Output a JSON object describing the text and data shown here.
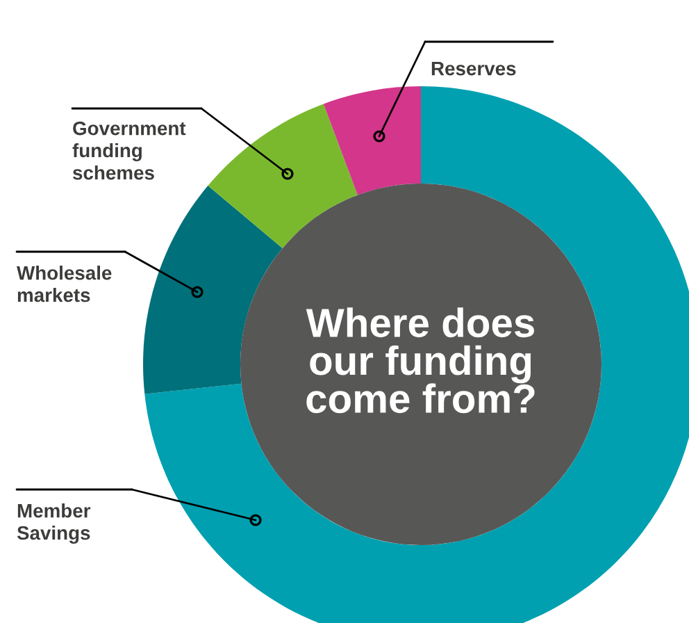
{
  "chart_data": {
    "type": "donut",
    "title": "Where does our funding come from?",
    "categories": [
      "Member Savings",
      "Wholesale markets",
      "Government funding schemes",
      "Reserves"
    ],
    "values": [
      73.3,
      12.8,
      8.2,
      5.7
    ],
    "colors": [
      "#00a0b0",
      "#00707a",
      "#7ab92e",
      "#d3368b"
    ],
    "legend": false
  }
}
